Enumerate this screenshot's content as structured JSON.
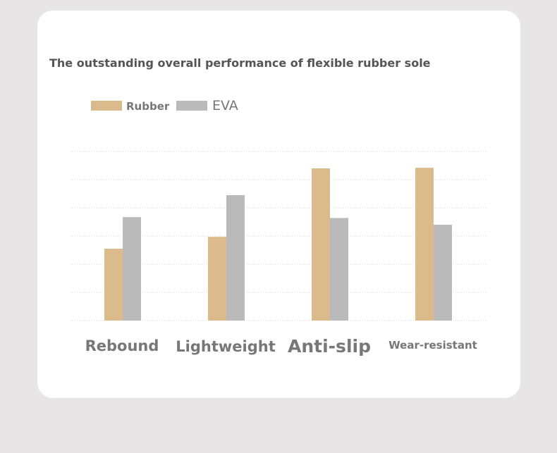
{
  "title": "The outstanding overall performance of flexible rubber sole",
  "colors": {
    "rubber": "#dbbb8c",
    "eva": "#bababa",
    "grid": "#d8d8d8",
    "text": "#777777"
  },
  "legend": [
    {
      "label": "Rubber",
      "color": "#dbbb8c"
    },
    {
      "label": "EVA",
      "color": "#bababa"
    }
  ],
  "chart_data": {
    "type": "bar",
    "categories": [
      "Rebound",
      "Lightweight",
      "Anti-slip",
      "Wear-resistant"
    ],
    "series": [
      {
        "name": "Rubber",
        "values": [
          2.55,
          2.97,
          5.4,
          5.42
        ]
      },
      {
        "name": "EVA",
        "values": [
          3.67,
          4.45,
          3.64,
          3.4
        ]
      }
    ],
    "ylim": [
      0,
      6
    ],
    "grid": true,
    "legend_position": "top-left"
  }
}
